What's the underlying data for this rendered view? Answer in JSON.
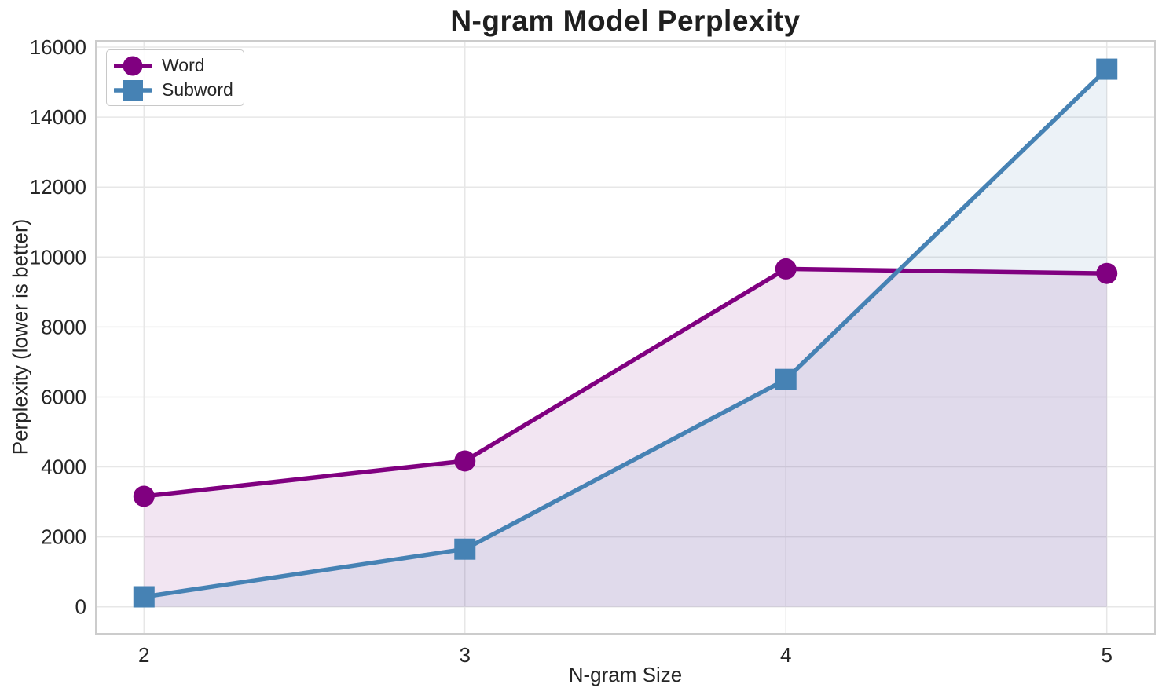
{
  "chart_data": {
    "type": "line",
    "title": "N-gram Model Perplexity",
    "xlabel": "N-gram Size",
    "ylabel": "Perplexity (lower is better)",
    "x": [
      2,
      3,
      4,
      5
    ],
    "xtick_labels": [
      "2",
      "3",
      "4",
      "5"
    ],
    "ytick_values": [
      0,
      2000,
      4000,
      6000,
      8000,
      10000,
      12000,
      14000,
      16000
    ],
    "series": [
      {
        "name": "Word",
        "marker": "circle",
        "color": "#800080",
        "values": [
          3160,
          4170,
          9660,
          9530
        ]
      },
      {
        "name": "Subword",
        "marker": "square",
        "color": "#4682B4",
        "values": [
          285,
          1650,
          6500,
          15370
        ]
      }
    ],
    "fill_to_zero": true,
    "fill_opacity": 0.1,
    "xlim": [
      1.85,
      5.15
    ],
    "ylim": [
      -770,
      16180
    ],
    "grid": true,
    "legend_position": "upper left"
  },
  "style": {
    "grid_color": "#e7e7e7",
    "spine_color": "#cccccc",
    "text_color": "#262626",
    "title_color": "#1f1f1f",
    "background": "#ffffff"
  }
}
